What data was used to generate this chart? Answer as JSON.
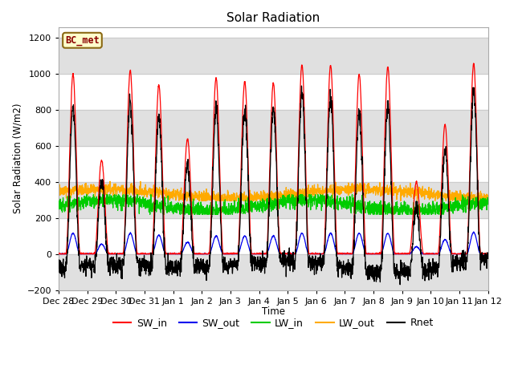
{
  "title": "Solar Radiation",
  "ylabel": "Solar Radiation (W/m2)",
  "xlabel": "Time",
  "ylim": [
    -200,
    1260
  ],
  "yticks": [
    -200,
    0,
    200,
    400,
    600,
    800,
    1000,
    1200
  ],
  "label": "BC_met",
  "legend": [
    "SW_in",
    "SW_out",
    "LW_in",
    "LW_out",
    "Rnet"
  ],
  "colors": {
    "SW_in": "#ff0000",
    "SW_out": "#0000ee",
    "LW_in": "#00cc00",
    "LW_out": "#ffaa00",
    "Rnet": "#000000"
  },
  "n_days": 15,
  "xtick_labels": [
    "Dec 28",
    "Dec 29",
    "Dec 30",
    "Dec 31",
    "Jan 1",
    "Jan 2",
    "Jan 3",
    "Jan 4",
    "Jan 5",
    "Jan 6",
    "Jan 7",
    "Jan 8",
    "Jan 9",
    "Jan 10",
    "Jan 11",
    "Jan 12"
  ],
  "SW_in_peaks": [
    1000,
    520,
    1020,
    940,
    640,
    980,
    960,
    950,
    1050,
    1050,
    1000,
    1040,
    400,
    720,
    1060
  ],
  "SW_out_peaks": [
    115,
    55,
    115,
    105,
    65,
    100,
    100,
    100,
    115,
    115,
    115,
    115,
    40,
    80,
    120
  ],
  "LW_in_base": 270,
  "LW_in_noise": 20,
  "LW_out_base": 335,
  "LW_out_noise": 15,
  "night_Rnet": -100,
  "gray_band_color": "#e0e0e0",
  "white_color": "#ffffff",
  "plot_bg": "#ffffff"
}
